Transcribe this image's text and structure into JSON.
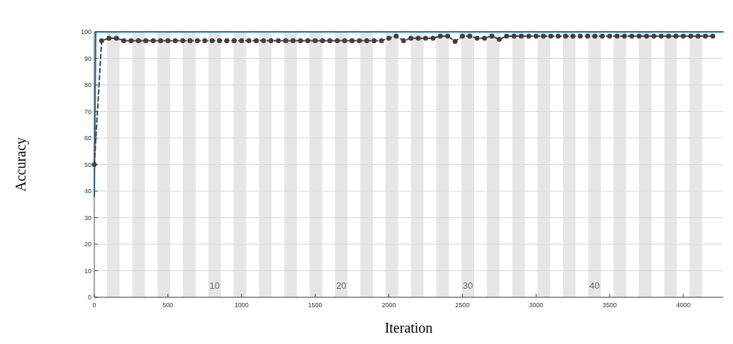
{
  "chart_data": {
    "type": "line",
    "xlabel": "Iteration",
    "ylabel": "Accuracy",
    "xlim": [
      0,
      4270
    ],
    "xticks": [
      0,
      500,
      1000,
      1500,
      2000,
      2500,
      3000,
      3500,
      4000
    ],
    "ylim": [
      0,
      100
    ],
    "yticks": [
      0,
      10,
      20,
      30,
      40,
      50,
      60,
      70,
      80,
      90,
      100
    ],
    "grid": "y",
    "series": [
      {
        "color": "#0072bd",
        "line_style": "solid",
        "marker": "none",
        "x": [
          0,
          10,
          4270
        ],
        "values": [
          38,
          100,
          100
        ]
      },
      {
        "color": "#404040",
        "line_style": "dashed",
        "marker": "circle",
        "x": [
          0,
          50,
          100,
          150,
          200,
          250,
          300,
          350,
          400,
          450,
          500,
          550,
          600,
          650,
          700,
          750,
          800,
          850,
          900,
          950,
          1000,
          1050,
          1100,
          1150,
          1200,
          1250,
          1300,
          1350,
          1400,
          1450,
          1500,
          1550,
          1600,
          1650,
          1700,
          1750,
          1800,
          1850,
          1900,
          1950,
          2000,
          2050,
          2100,
          2150,
          2200,
          2250,
          2300,
          2350,
          2400,
          2450,
          2500,
          2550,
          2600,
          2650,
          2700,
          2750,
          2800,
          2850,
          2900,
          2950,
          3000,
          3050,
          3100,
          3150,
          3200,
          3250,
          3300,
          3350,
          3400,
          3450,
          3500,
          3550,
          3600,
          3650,
          3700,
          3750,
          3800,
          3850,
          3900,
          3950,
          4000,
          4050,
          4100,
          4150,
          4200
        ],
        "values": [
          50,
          96.7,
          97.6,
          97.6,
          96.7,
          96.7,
          96.7,
          96.7,
          96.7,
          96.7,
          96.7,
          96.7,
          96.7,
          96.7,
          96.7,
          96.7,
          96.7,
          96.7,
          96.7,
          96.7,
          96.7,
          96.7,
          96.7,
          96.7,
          96.7,
          96.7,
          96.7,
          96.7,
          96.7,
          96.7,
          96.7,
          96.7,
          96.7,
          96.7,
          96.7,
          96.7,
          96.7,
          96.7,
          96.7,
          96.7,
          97.6,
          98.4,
          96.7,
          97.6,
          97.6,
          97.6,
          97.6,
          98.4,
          98.4,
          96.4,
          98.4,
          98.4,
          97.6,
          97.6,
          98.4,
          97.2,
          98.4,
          98.4,
          98.4,
          98.4,
          98.4,
          98.4,
          98.4,
          98.4,
          98.4,
          98.4,
          98.4,
          98.4,
          98.4,
          98.4,
          98.4,
          98.4,
          98.4,
          98.4,
          98.4,
          98.4,
          98.4,
          98.4,
          98.4,
          98.4,
          98.4,
          98.4,
          98.4,
          98.4,
          98.4
        ]
      }
    ],
    "bands": [
      {
        "axis": "x",
        "from": 86,
        "to": 172,
        "color": "#e6e6e6"
      },
      {
        "axis": "x",
        "from": 258,
        "to": 344,
        "color": "#e6e6e6"
      },
      {
        "axis": "x",
        "from": 430,
        "to": 516,
        "color": "#e6e6e6"
      },
      {
        "axis": "x",
        "from": 602,
        "to": 688,
        "color": "#e6e6e6"
      },
      {
        "axis": "x",
        "from": 774,
        "to": 860,
        "color": "#e6e6e6",
        "label": "10"
      },
      {
        "axis": "x",
        "from": 946,
        "to": 1032,
        "color": "#e6e6e6"
      },
      {
        "axis": "x",
        "from": 1118,
        "to": 1204,
        "color": "#e6e6e6"
      },
      {
        "axis": "x",
        "from": 1290,
        "to": 1376,
        "color": "#e6e6e6"
      },
      {
        "axis": "x",
        "from": 1462,
        "to": 1548,
        "color": "#e6e6e6"
      },
      {
        "axis": "x",
        "from": 1634,
        "to": 1720,
        "color": "#e6e6e6",
        "label": "20"
      },
      {
        "axis": "x",
        "from": 1806,
        "to": 1892,
        "color": "#e6e6e6"
      },
      {
        "axis": "x",
        "from": 1978,
        "to": 2064,
        "color": "#e6e6e6"
      },
      {
        "axis": "x",
        "from": 2150,
        "to": 2236,
        "color": "#e6e6e6"
      },
      {
        "axis": "x",
        "from": 2322,
        "to": 2408,
        "color": "#e6e6e6"
      },
      {
        "axis": "x",
        "from": 2494,
        "to": 2580,
        "color": "#e6e6e6",
        "label": "30"
      },
      {
        "axis": "x",
        "from": 2666,
        "to": 2752,
        "color": "#e6e6e6"
      },
      {
        "axis": "x",
        "from": 2838,
        "to": 2924,
        "color": "#e6e6e6"
      },
      {
        "axis": "x",
        "from": 3010,
        "to": 3096,
        "color": "#e6e6e6"
      },
      {
        "axis": "x",
        "from": 3182,
        "to": 3268,
        "color": "#e6e6e6"
      },
      {
        "axis": "x",
        "from": 3354,
        "to": 3440,
        "color": "#e6e6e6",
        "label": "40"
      },
      {
        "axis": "x",
        "from": 3526,
        "to": 3612,
        "color": "#e6e6e6"
      },
      {
        "axis": "x",
        "from": 3698,
        "to": 3784,
        "color": "#e6e6e6"
      },
      {
        "axis": "x",
        "from": 3870,
        "to": 3956,
        "color": "#e6e6e6"
      },
      {
        "axis": "x",
        "from": 4042,
        "to": 4128,
        "color": "#e6e6e6"
      }
    ]
  }
}
